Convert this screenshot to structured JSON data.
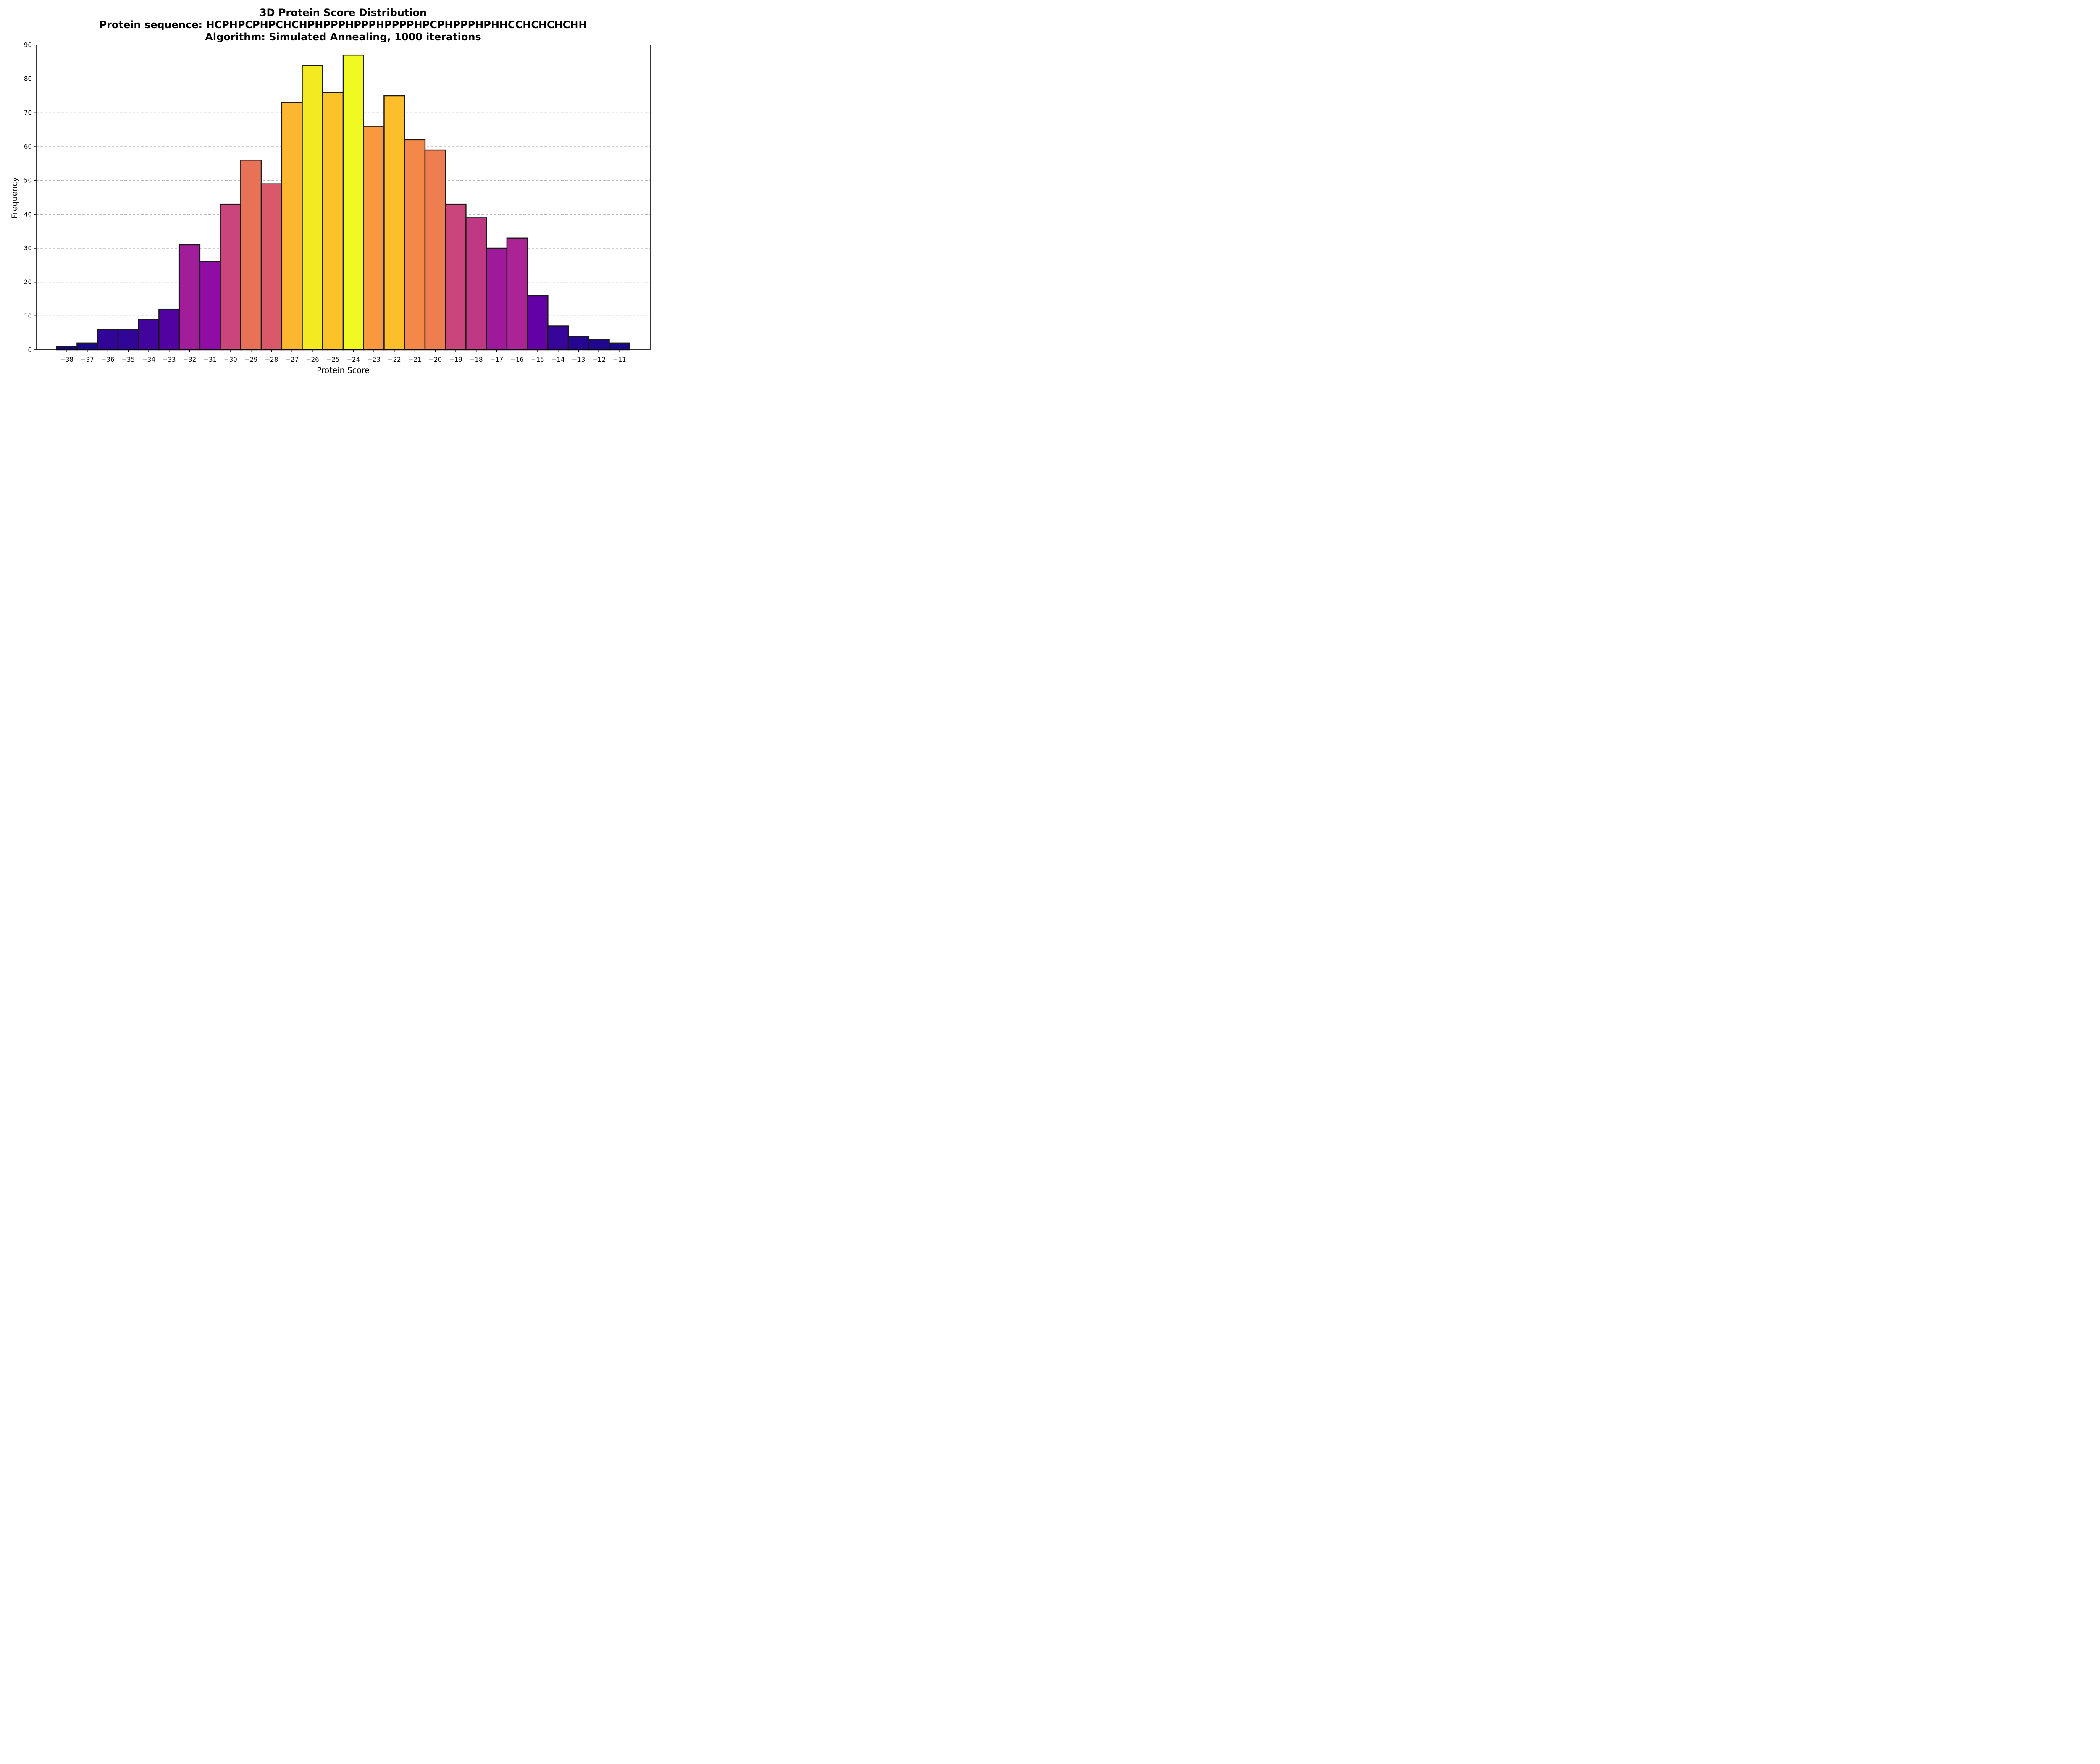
{
  "chart_data": {
    "type": "bar",
    "title": [
      "3D Protein Score Distribution",
      "Protein sequence: HCPHPCPHPCHCHPHPPPHPPPHPPPPHPCPHPPPHPHHCCHCHCHCHH",
      "Algorithm: Simulated Annealing, 1000 iterations"
    ],
    "xlabel": "Protein Score",
    "ylabel": "Frequency",
    "categories": [
      "−38",
      "−37",
      "−36",
      "−35",
      "−34",
      "−33",
      "−32",
      "−31",
      "−30",
      "−29",
      "−28",
      "−27",
      "−26",
      "−25",
      "−24",
      "−23",
      "−22",
      "−21",
      "−20",
      "−19",
      "−18",
      "−17",
      "−16",
      "−15",
      "−14",
      "−13",
      "−12",
      "−11"
    ],
    "x": [
      -38,
      -37,
      -36,
      -35,
      -34,
      -33,
      -32,
      -31,
      -30,
      -29,
      -28,
      -27,
      -26,
      -25,
      -24,
      -23,
      -22,
      -21,
      -20,
      -19,
      -18,
      -17,
      -16,
      -15,
      -14,
      -13,
      -12,
      -11
    ],
    "values": [
      1,
      2,
      6,
      6,
      9,
      12,
      31,
      26,
      43,
      56,
      49,
      73,
      84,
      76,
      87,
      66,
      75,
      62,
      59,
      43,
      39,
      30,
      33,
      16,
      7,
      4,
      3,
      2
    ],
    "ylim": [
      0,
      90
    ],
    "yticks": [
      0,
      10,
      20,
      30,
      40,
      50,
      60,
      70,
      80,
      90
    ],
    "xlim": [
      -39.5,
      -9.5
    ],
    "grid": "y-axis dashed",
    "colormap": "plasma"
  }
}
